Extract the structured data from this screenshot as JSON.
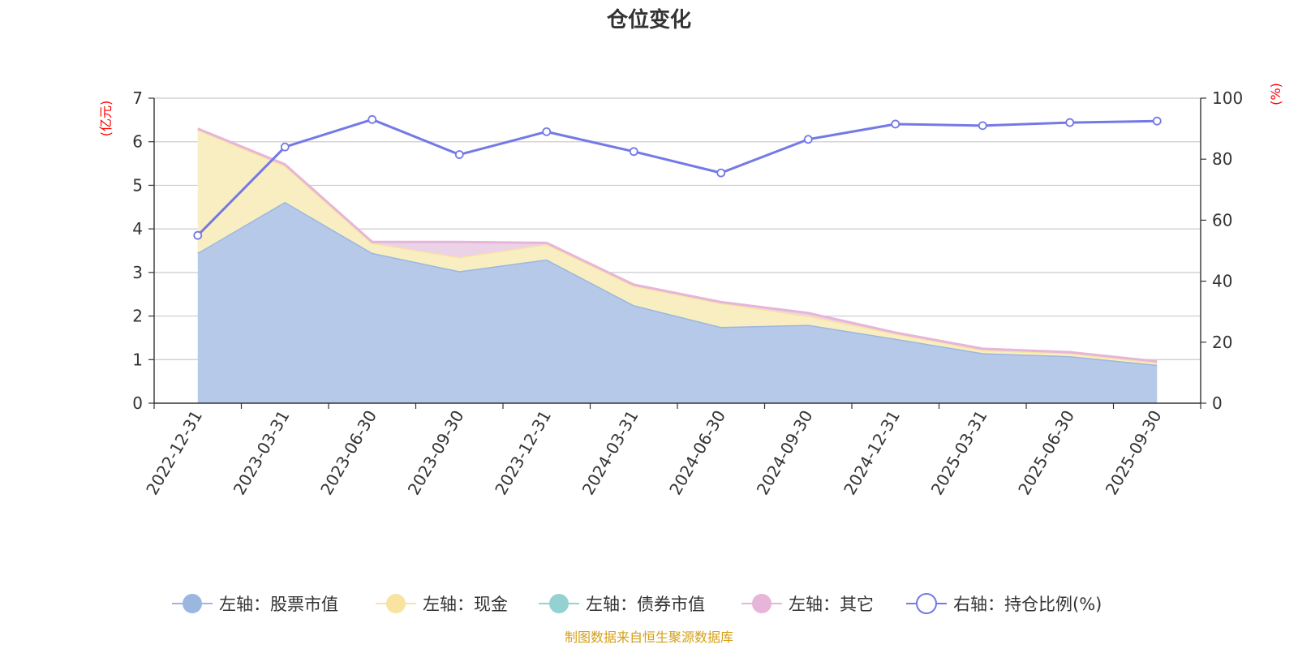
{
  "chart_data": {
    "type": "area",
    "title": "仓位变化",
    "left_axis_unit": "(亿元)",
    "right_axis_unit": "(%)",
    "categories": [
      "2022-12-31",
      "2023-03-31",
      "2023-06-30",
      "2023-09-30",
      "2023-12-31",
      "2024-03-31",
      "2024-06-30",
      "2024-09-30",
      "2024-12-31",
      "2025-03-31",
      "2025-06-30",
      "2025-09-30"
    ],
    "left_ylim": [
      0,
      7
    ],
    "left_ticks": [
      "0",
      "1",
      "2",
      "3",
      "4",
      "5",
      "6",
      "7"
    ],
    "right_ylim": [
      0,
      100
    ],
    "right_ticks": [
      "0",
      "20",
      "40",
      "60",
      "80",
      "100"
    ],
    "series": [
      {
        "name": "左轴：股票市值",
        "axis": "left",
        "kind": "stacked-area",
        "color": "#9bb7e0",
        "fill": "#b6c9e8",
        "values": [
          3.45,
          4.62,
          3.45,
          3.03,
          3.3,
          2.25,
          1.75,
          1.8,
          1.48,
          1.15,
          1.08,
          0.88
        ]
      },
      {
        "name": "左轴：现金",
        "axis": "left",
        "kind": "stacked-area",
        "color": "#f8e3a0",
        "fill": "#f9eec1",
        "values": [
          2.83,
          0.83,
          0.23,
          0.32,
          0.35,
          0.45,
          0.55,
          0.2,
          0.12,
          0.07,
          0.07,
          0.05
        ]
      },
      {
        "name": "左轴：债券市值",
        "axis": "left",
        "kind": "stacked-area",
        "color": "#94d2d1",
        "fill": "#b9e3e2",
        "values": [
          0,
          0,
          0,
          0,
          0,
          0,
          0,
          0,
          0,
          0,
          0,
          0
        ]
      },
      {
        "name": "左轴：其它",
        "axis": "left",
        "kind": "stacked-area",
        "color": "#e6b5d9",
        "fill": "#ecd2e6",
        "values": [
          0.02,
          0.03,
          0.02,
          0.35,
          0.03,
          0.02,
          0.02,
          0.07,
          0.02,
          0.03,
          0.02,
          0.03
        ]
      },
      {
        "name": "右轴：持仓比例(%)",
        "axis": "right",
        "kind": "line",
        "color": "#7479e6",
        "values": [
          55,
          84,
          93,
          81.5,
          89,
          82.5,
          75.5,
          86.5,
          91.5,
          91,
          92,
          92.5
        ]
      }
    ],
    "legend_position": "bottom-center",
    "grid": true
  },
  "footer": {
    "source": "制图数据来自恒生聚源数据库",
    "source_color": "#d4a017"
  },
  "colors": {
    "axis": "#333333",
    "grid": "#cccccc",
    "unit": "#ff0000"
  }
}
